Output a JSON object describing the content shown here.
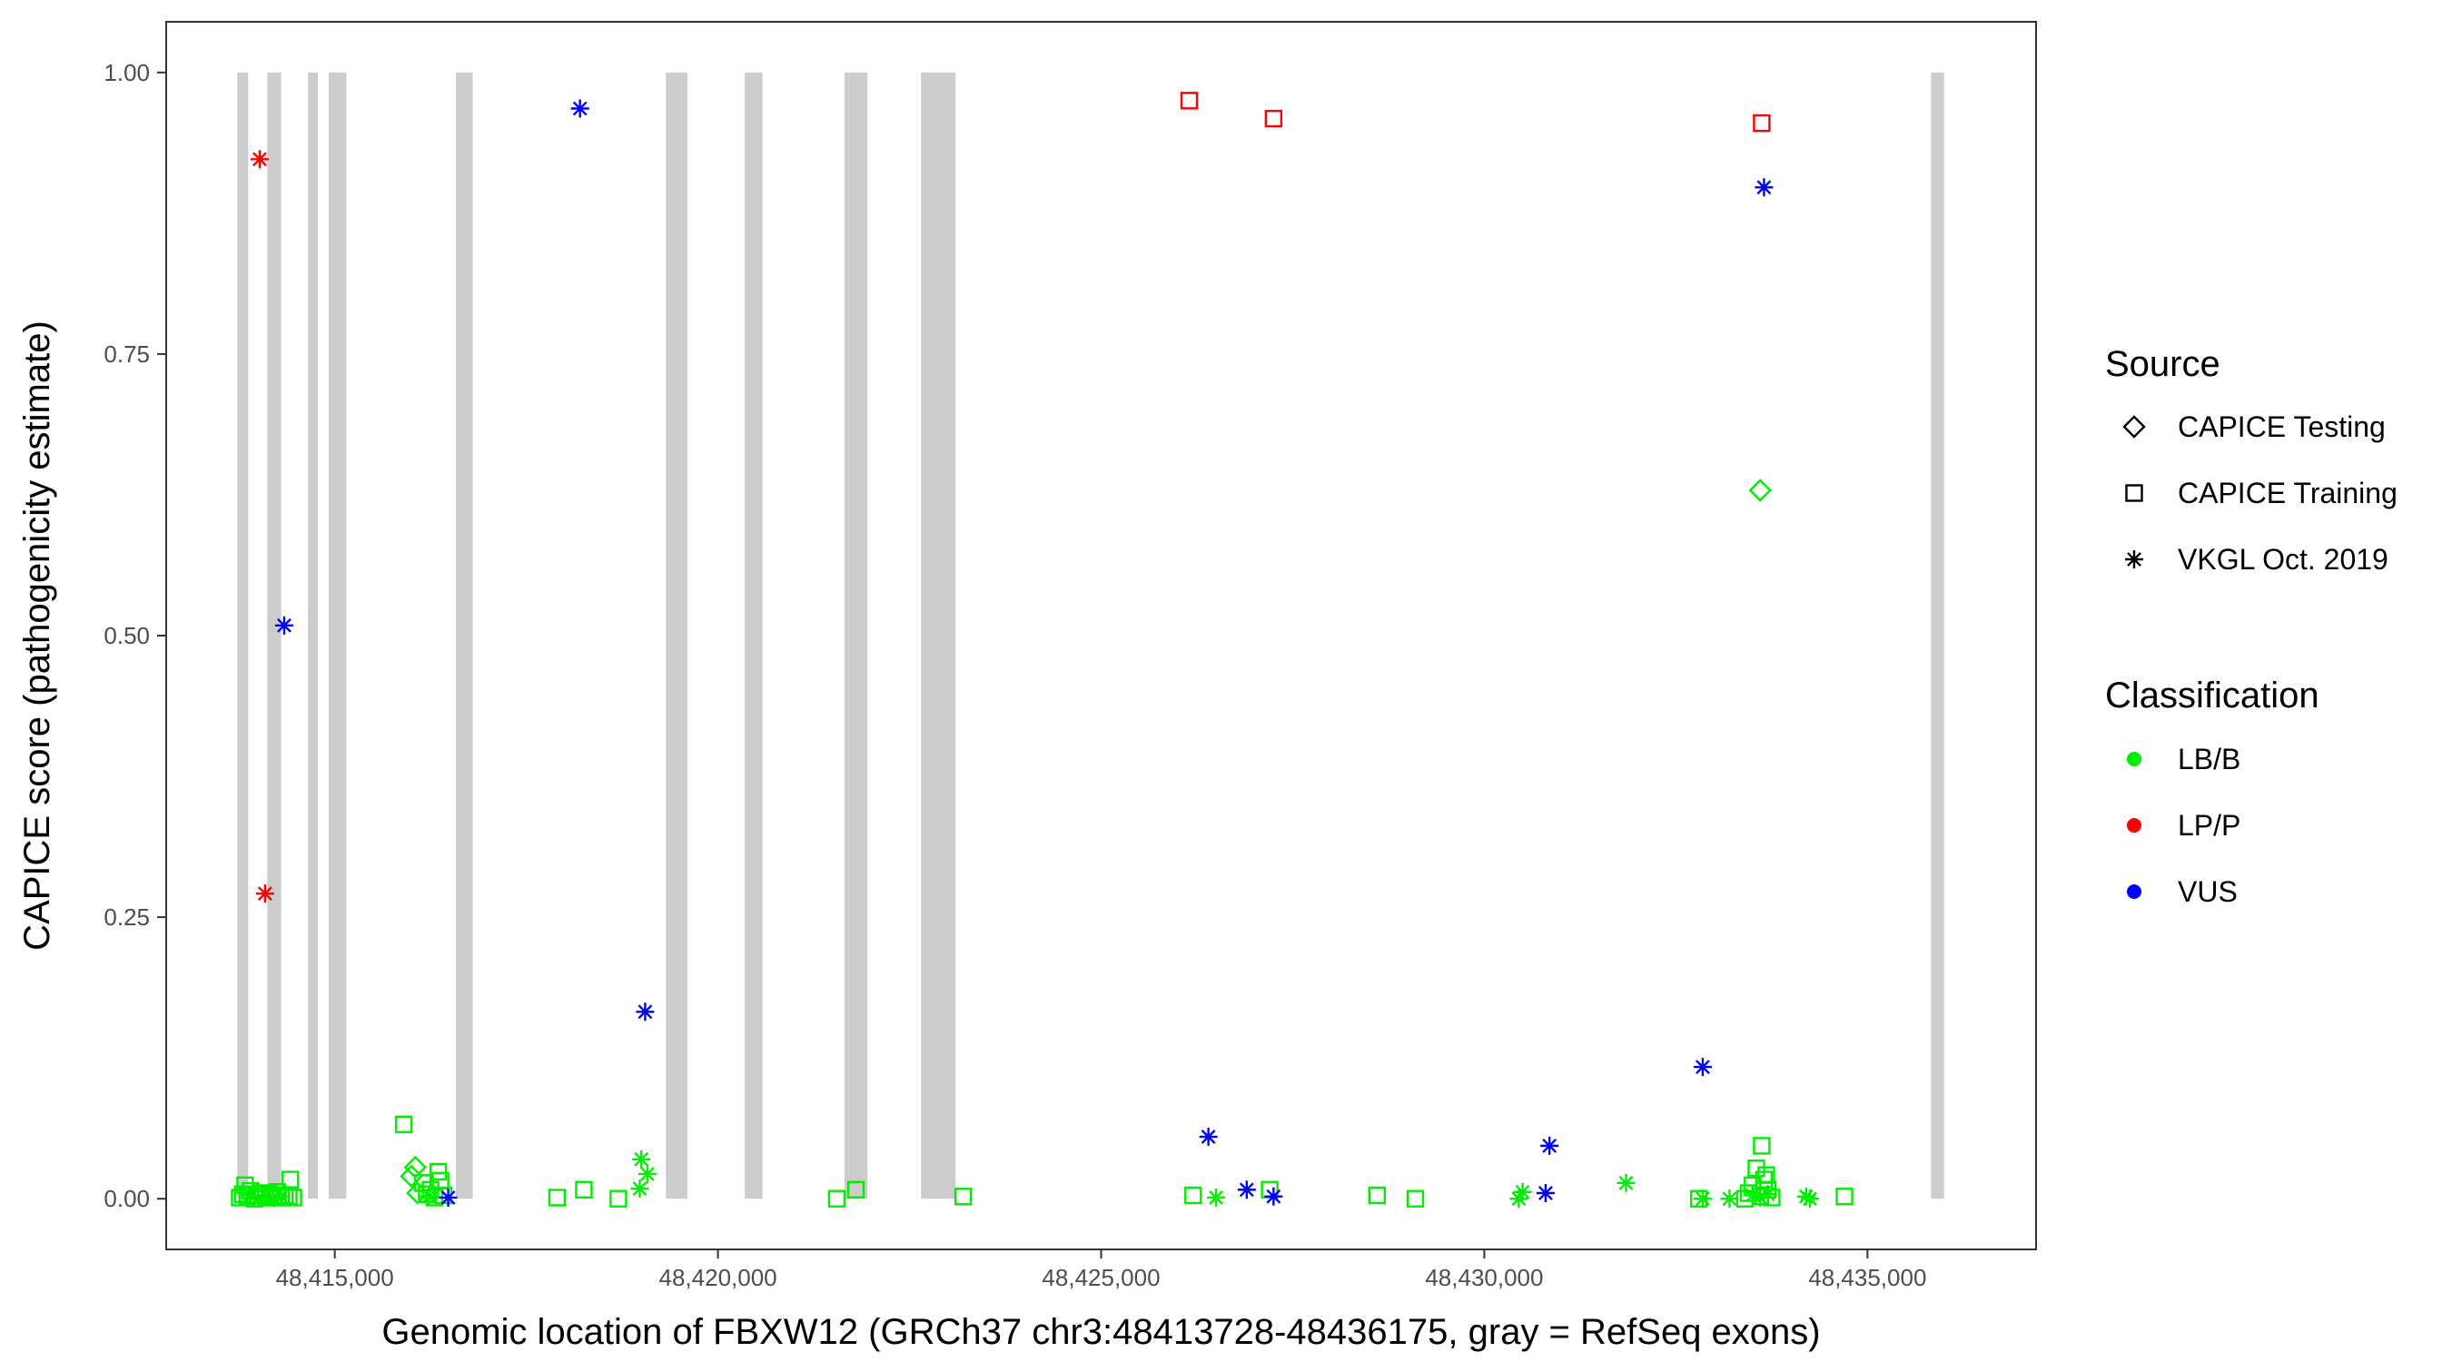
{
  "chart_data": {
    "type": "scatter",
    "xlabel": "Genomic location of FBXW12 (GRCh37 chr3:48413728-48436175, gray = RefSeq exons)",
    "ylabel": "CAPICE score (pathogenicity estimate)",
    "xlim": [
      48412800,
      48437200
    ],
    "ylim": [
      -0.045,
      1.045
    ],
    "x_ticks": [
      48415000,
      48420000,
      48425000,
      48430000,
      48435000
    ],
    "x_tick_labels": [
      "48,415,000",
      "48,420,000",
      "48,425,000",
      "48,430,000",
      "48,435,000"
    ],
    "y_ticks": [
      0,
      0.25,
      0.5,
      0.75,
      1
    ],
    "y_tick_labels": [
      "0.00",
      "0.25",
      "0.50",
      "0.75",
      "1.00"
    ],
    "grid": false,
    "exons": [
      [
        48413728,
        48413870
      ],
      [
        48414120,
        48414300
      ],
      [
        48414650,
        48414780
      ],
      [
        48414920,
        48415150
      ],
      [
        48416580,
        48416800
      ],
      [
        48419320,
        48419600
      ],
      [
        48420350,
        48420580
      ],
      [
        48421650,
        48421950
      ],
      [
        48422650,
        48423100
      ],
      [
        48435830,
        48436000
      ]
    ],
    "legend_source": {
      "title": "Source",
      "items": [
        {
          "label": "CAPICE Testing",
          "shape": "diamond"
        },
        {
          "label": "CAPICE Training",
          "shape": "square"
        },
        {
          "label": "VKGL Oct. 2019",
          "shape": "asterisk"
        }
      ]
    },
    "legend_classification": {
      "title": "Classification",
      "items": [
        {
          "label": "LB/B",
          "color": "#00ee00"
        },
        {
          "label": "LP/P",
          "color": "#ff0000"
        },
        {
          "label": "VUS",
          "color": "#0000ff"
        }
      ]
    },
    "points": [
      {
        "x": 48413760,
        "y": 0.001,
        "shape": "square",
        "cls": "LB/B"
      },
      {
        "x": 48413800,
        "y": 0.004,
        "shape": "square",
        "cls": "LB/B"
      },
      {
        "x": 48413830,
        "y": 0.012,
        "shape": "square",
        "cls": "LB/B"
      },
      {
        "x": 48413860,
        "y": 0.002,
        "shape": "square",
        "cls": "LB/B"
      },
      {
        "x": 48413900,
        "y": 0.007,
        "shape": "square",
        "cls": "LB/B"
      },
      {
        "x": 48413950,
        "y": 0.0,
        "shape": "square",
        "cls": "LB/B"
      },
      {
        "x": 48414000,
        "y": 0.003,
        "shape": "square",
        "cls": "LB/B"
      },
      {
        "x": 48414050,
        "y": 0.005,
        "shape": "square",
        "cls": "LB/B"
      },
      {
        "x": 48414100,
        "y": 0.001,
        "shape": "square",
        "cls": "LB/B"
      },
      {
        "x": 48414150,
        "y": 0.004,
        "shape": "square",
        "cls": "LB/B"
      },
      {
        "x": 48414200,
        "y": 0.002,
        "shape": "square",
        "cls": "LB/B"
      },
      {
        "x": 48414250,
        "y": 0.006,
        "shape": "square",
        "cls": "LB/B"
      },
      {
        "x": 48414300,
        "y": 0.001,
        "shape": "square",
        "cls": "LB/B"
      },
      {
        "x": 48414350,
        "y": 0.003,
        "shape": "square",
        "cls": "LB/B"
      },
      {
        "x": 48414400,
        "y": 0.002,
        "shape": "square",
        "cls": "LB/B"
      },
      {
        "x": 48414420,
        "y": 0.017,
        "shape": "square",
        "cls": "LB/B"
      },
      {
        "x": 48414460,
        "y": 0.001,
        "shape": "square",
        "cls": "LB/B"
      },
      {
        "x": 48413900,
        "y": 0.003,
        "shape": "asterisk",
        "cls": "LB/B"
      },
      {
        "x": 48414000,
        "y": 0.001,
        "shape": "asterisk",
        "cls": "LB/B"
      },
      {
        "x": 48414100,
        "y": 0.002,
        "shape": "asterisk",
        "cls": "LB/B"
      },
      {
        "x": 48414200,
        "y": 0.001,
        "shape": "asterisk",
        "cls": "LB/B"
      },
      {
        "x": 48414300,
        "y": 0.002,
        "shape": "asterisk",
        "cls": "LB/B"
      },
      {
        "x": 48414020,
        "y": 0.923,
        "shape": "asterisk",
        "cls": "LP/P"
      },
      {
        "x": 48414090,
        "y": 0.271,
        "shape": "asterisk",
        "cls": "LP/P"
      },
      {
        "x": 48414340,
        "y": 0.509,
        "shape": "asterisk",
        "cls": "VUS"
      },
      {
        "x": 48415900,
        "y": 0.066,
        "shape": "square",
        "cls": "LB/B"
      },
      {
        "x": 48416000,
        "y": 0.02,
        "shape": "diamond",
        "cls": "LB/B"
      },
      {
        "x": 48416050,
        "y": 0.028,
        "shape": "diamond",
        "cls": "LB/B"
      },
      {
        "x": 48416080,
        "y": 0.005,
        "shape": "diamond",
        "cls": "LB/B"
      },
      {
        "x": 48416150,
        "y": 0.014,
        "shape": "square",
        "cls": "LB/B"
      },
      {
        "x": 48416200,
        "y": 0.004,
        "shape": "square",
        "cls": "LB/B"
      },
      {
        "x": 48416250,
        "y": 0.008,
        "shape": "square",
        "cls": "LB/B"
      },
      {
        "x": 48416300,
        "y": 0.001,
        "shape": "square",
        "cls": "LB/B"
      },
      {
        "x": 48416350,
        "y": 0.024,
        "shape": "square",
        "cls": "LB/B"
      },
      {
        "x": 48416380,
        "y": 0.016,
        "shape": "square",
        "cls": "LB/B"
      },
      {
        "x": 48416420,
        "y": 0.003,
        "shape": "square",
        "cls": "LB/B"
      },
      {
        "x": 48416230,
        "y": 0.002,
        "shape": "asterisk",
        "cls": "LB/B"
      },
      {
        "x": 48416480,
        "y": 0.001,
        "shape": "asterisk",
        "cls": "VUS"
      },
      {
        "x": 48418200,
        "y": 0.968,
        "shape": "asterisk",
        "cls": "VUS"
      },
      {
        "x": 48419050,
        "y": 0.166,
        "shape": "asterisk",
        "cls": "VUS"
      },
      {
        "x": 48417900,
        "y": 0.001,
        "shape": "square",
        "cls": "LB/B"
      },
      {
        "x": 48418250,
        "y": 0.008,
        "shape": "square",
        "cls": "LB/B"
      },
      {
        "x": 48418700,
        "y": 0.0,
        "shape": "square",
        "cls": "LB/B"
      },
      {
        "x": 48419000,
        "y": 0.035,
        "shape": "asterisk",
        "cls": "LB/B"
      },
      {
        "x": 48419080,
        "y": 0.022,
        "shape": "asterisk",
        "cls": "LB/B"
      },
      {
        "x": 48418980,
        "y": 0.009,
        "shape": "asterisk",
        "cls": "LB/B"
      },
      {
        "x": 48421550,
        "y": 0.0,
        "shape": "square",
        "cls": "LB/B"
      },
      {
        "x": 48421800,
        "y": 0.008,
        "shape": "square",
        "cls": "LB/B"
      },
      {
        "x": 48423200,
        "y": 0.002,
        "shape": "square",
        "cls": "LB/B"
      },
      {
        "x": 48426150,
        "y": 0.975,
        "shape": "square",
        "cls": "LP/P"
      },
      {
        "x": 48427250,
        "y": 0.959,
        "shape": "square",
        "cls": "LP/P"
      },
      {
        "x": 48426200,
        "y": 0.003,
        "shape": "square",
        "cls": "LB/B"
      },
      {
        "x": 48426500,
        "y": 0.001,
        "shape": "asterisk",
        "cls": "LB/B"
      },
      {
        "x": 48427200,
        "y": 0.008,
        "shape": "square",
        "cls": "LB/B"
      },
      {
        "x": 48426400,
        "y": 0.055,
        "shape": "asterisk",
        "cls": "VUS"
      },
      {
        "x": 48426900,
        "y": 0.008,
        "shape": "asterisk",
        "cls": "VUS"
      },
      {
        "x": 48427250,
        "y": 0.002,
        "shape": "asterisk",
        "cls": "VUS"
      },
      {
        "x": 48428600,
        "y": 0.003,
        "shape": "square",
        "cls": "LB/B"
      },
      {
        "x": 48429100,
        "y": 0.0,
        "shape": "square",
        "cls": "LB/B"
      },
      {
        "x": 48430450,
        "y": 0.0,
        "shape": "asterisk",
        "cls": "LB/B"
      },
      {
        "x": 48430500,
        "y": 0.006,
        "shape": "asterisk",
        "cls": "LB/B"
      },
      {
        "x": 48430800,
        "y": 0.005,
        "shape": "asterisk",
        "cls": "VUS"
      },
      {
        "x": 48430850,
        "y": 0.047,
        "shape": "asterisk",
        "cls": "VUS"
      },
      {
        "x": 48431850,
        "y": 0.014,
        "shape": "asterisk",
        "cls": "LB/B"
      },
      {
        "x": 48432850,
        "y": 0.117,
        "shape": "asterisk",
        "cls": "VUS"
      },
      {
        "x": 48432800,
        "y": 0.0,
        "shape": "square",
        "cls": "LB/B"
      },
      {
        "x": 48432850,
        "y": 0.0,
        "shape": "asterisk",
        "cls": "LB/B"
      },
      {
        "x": 48433200,
        "y": 0.0,
        "shape": "asterisk",
        "cls": "LB/B"
      },
      {
        "x": 48433400,
        "y": 0.0,
        "shape": "square",
        "cls": "LB/B"
      },
      {
        "x": 48433450,
        "y": 0.005,
        "shape": "square",
        "cls": "LB/B"
      },
      {
        "x": 48433500,
        "y": 0.012,
        "shape": "square",
        "cls": "LB/B"
      },
      {
        "x": 48433550,
        "y": 0.027,
        "shape": "square",
        "cls": "LB/B"
      },
      {
        "x": 48433600,
        "y": 0.002,
        "shape": "square",
        "cls": "LB/B"
      },
      {
        "x": 48433650,
        "y": 0.017,
        "shape": "square",
        "cls": "LB/B"
      },
      {
        "x": 48433700,
        "y": 0.008,
        "shape": "square",
        "cls": "LB/B"
      },
      {
        "x": 48433750,
        "y": 0.001,
        "shape": "square",
        "cls": "LB/B"
      },
      {
        "x": 48433620,
        "y": 0.047,
        "shape": "square",
        "cls": "LB/B"
      },
      {
        "x": 48433680,
        "y": 0.021,
        "shape": "square",
        "cls": "LB/B"
      },
      {
        "x": 48433500,
        "y": 0.003,
        "shape": "asterisk",
        "cls": "LB/B"
      },
      {
        "x": 48433600,
        "y": 0.001,
        "shape": "asterisk",
        "cls": "LB/B"
      },
      {
        "x": 48433700,
        "y": 0.004,
        "shape": "asterisk",
        "cls": "LB/B"
      },
      {
        "x": 48434200,
        "y": 0.002,
        "shape": "asterisk",
        "cls": "LB/B"
      },
      {
        "x": 48434250,
        "y": 0.0,
        "shape": "asterisk",
        "cls": "LB/B"
      },
      {
        "x": 48434700,
        "y": 0.002,
        "shape": "square",
        "cls": "LB/B"
      },
      {
        "x": 48433620,
        "y": 0.955,
        "shape": "square",
        "cls": "LP/P"
      },
      {
        "x": 48433600,
        "y": 0.629,
        "shape": "diamond",
        "cls": "LB/B"
      },
      {
        "x": 48433650,
        "y": 0.898,
        "shape": "asterisk",
        "cls": "VUS"
      }
    ]
  }
}
